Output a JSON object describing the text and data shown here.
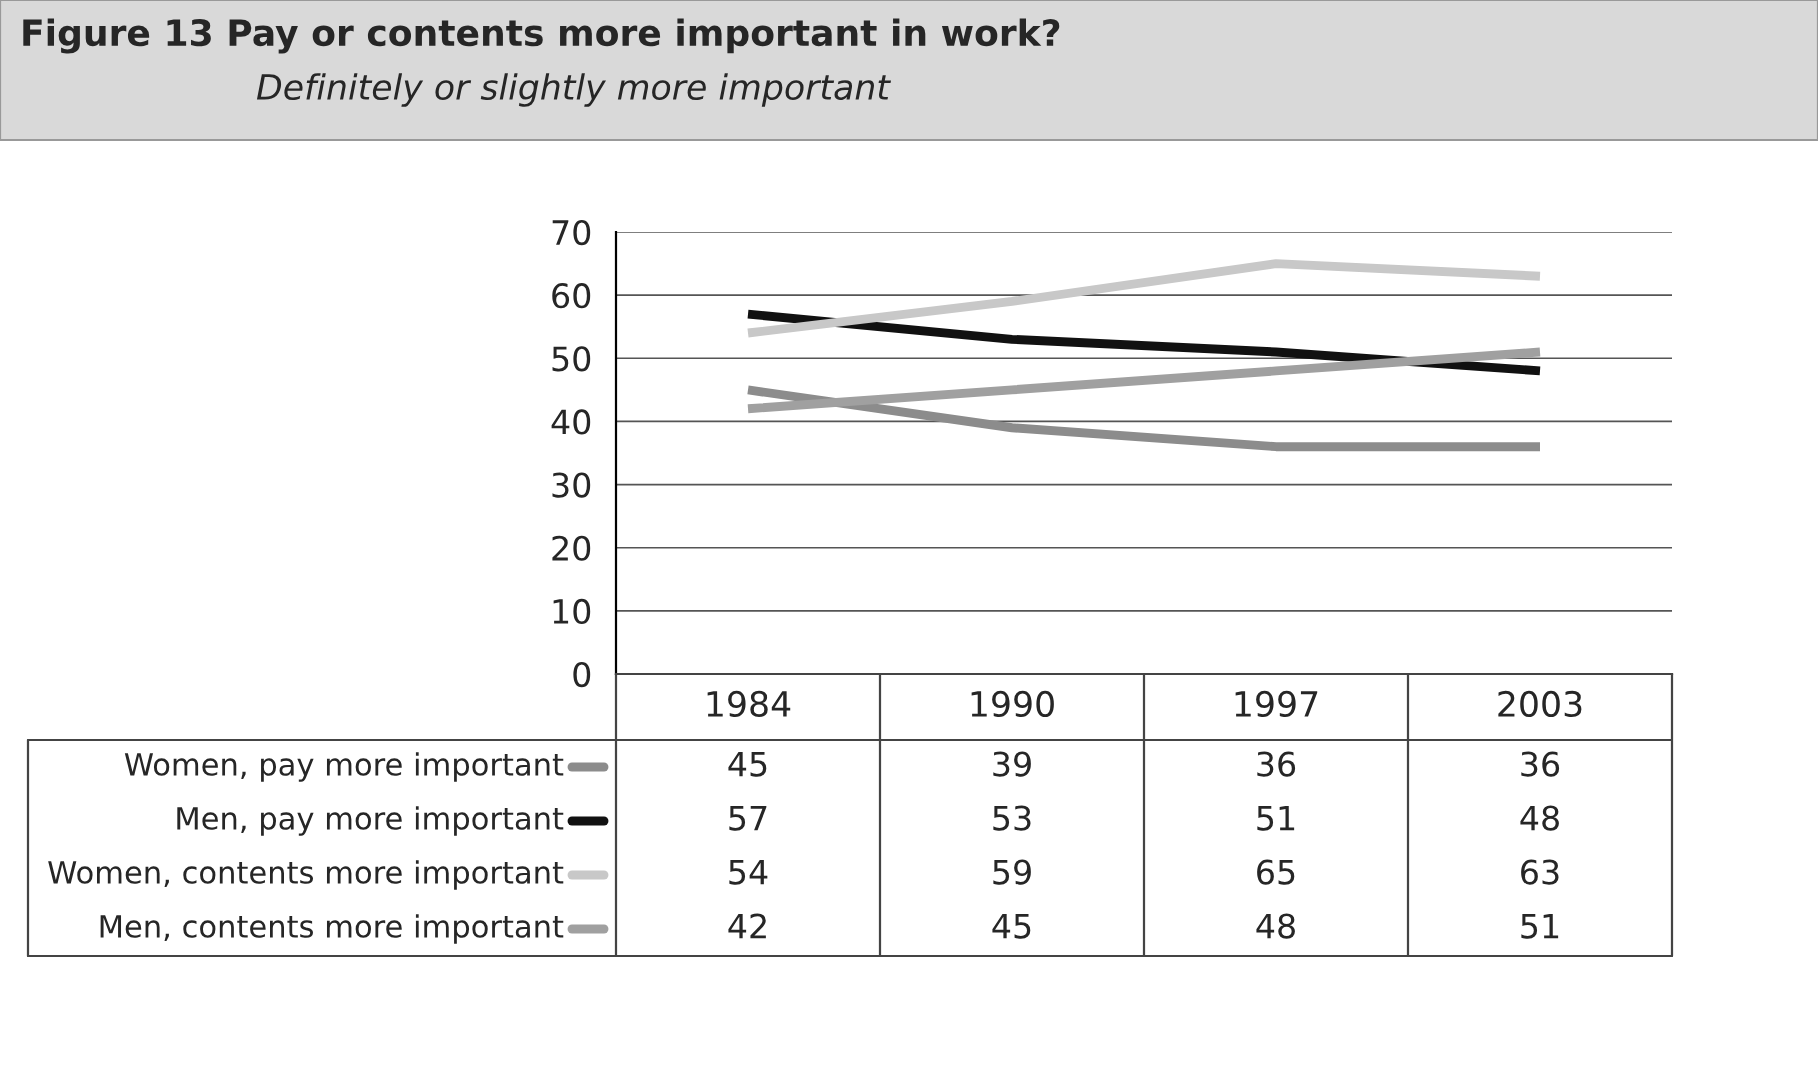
{
  "chart_data": {
    "type": "line",
    "title": "Figure 13 Pay or contents more important in work?",
    "subtitle": "Definitely or slightly more important",
    "categories": [
      "1984",
      "1990",
      "1997",
      "2003"
    ],
    "series": [
      {
        "name": "Women, pay more important",
        "color": "#8c8c8c",
        "values": [
          45,
          39,
          36,
          36
        ]
      },
      {
        "name": "Men, pay more important",
        "color": "#111111",
        "values": [
          57,
          53,
          51,
          48
        ]
      },
      {
        "name": "Women, contents more important",
        "color": "#c8c8c8",
        "values": [
          54,
          59,
          65,
          63
        ]
      },
      {
        "name": "Men, contents more important",
        "color": "#a0a0a0",
        "values": [
          42,
          45,
          48,
          51
        ]
      }
    ],
    "ylim": [
      0,
      70
    ],
    "yticks": [
      0,
      10,
      20,
      30,
      40,
      50,
      60,
      70
    ],
    "grid": "y",
    "legend": "bottom",
    "data_labels": true,
    "marker": "none",
    "line_style": "solid"
  }
}
